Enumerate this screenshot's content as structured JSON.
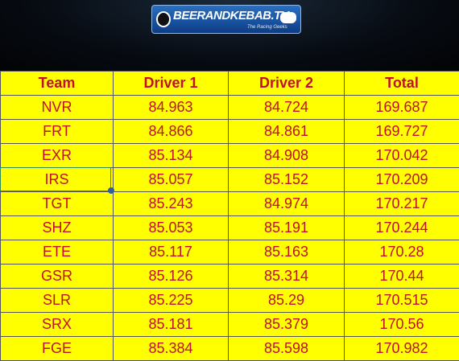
{
  "header": {
    "logo": "BEERANDKEBAB.TV",
    "tagline": "The Racing Geeks"
  },
  "table": {
    "columns": [
      "Team",
      "Driver 1",
      "Driver 2",
      "Total"
    ],
    "rows": [
      [
        "NVR",
        "84.963",
        "84.724",
        "169.687"
      ],
      [
        "FRT",
        "84.866",
        "84.861",
        "169.727"
      ],
      [
        "EXR",
        "85.134",
        "84.908",
        "170.042"
      ],
      [
        "IRS",
        "85.057",
        "85.152",
        "170.209"
      ],
      [
        "TGT",
        "85.243",
        "84.974",
        "170.217"
      ],
      [
        "SHZ",
        "85.053",
        "85.191",
        "170.244"
      ],
      [
        "ETE",
        "85.117",
        "85.163",
        "170.28"
      ],
      [
        "GSR",
        "85.126",
        "85.314",
        "170.44"
      ],
      [
        "SLR",
        "85.225",
        "85.29",
        "170.515"
      ],
      [
        "SRX",
        "85.181",
        "85.379",
        "170.56"
      ],
      [
        "FGE",
        "85.384",
        "85.598",
        "170.982"
      ]
    ]
  }
}
